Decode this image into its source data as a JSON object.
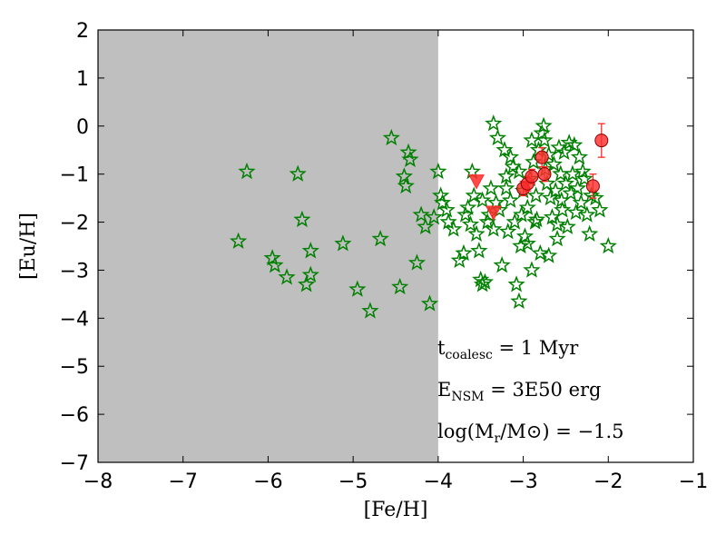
{
  "chart_data": {
    "type": "scatter",
    "xlabel": "[Fe/H]",
    "ylabel": "[Eu/H]",
    "xlim": [
      -8,
      -1
    ],
    "ylim": [
      -7,
      2
    ],
    "xticks": [
      -8,
      -7,
      -6,
      -5,
      -4,
      -3,
      -2,
      -1
    ],
    "xtick_labels": [
      "−8",
      "−7",
      "−6",
      "−5",
      "−4",
      "−3",
      "−2",
      "−1"
    ],
    "yticks": [
      2,
      1,
      0,
      -1,
      -2,
      -3,
      -4,
      -5,
      -6,
      -7
    ],
    "ytick_labels": [
      "2",
      "1",
      "0",
      "−1",
      "−2",
      "−3",
      "−4",
      "−5",
      "−6",
      "−7"
    ],
    "shaded_region": {
      "x": [
        -8,
        -4
      ],
      "color": "#bfbfbf"
    },
    "grid": false,
    "annotations": [
      {
        "main": "t",
        "sub": "coalesc",
        "rest": " = 1 Myr"
      },
      {
        "main": "E",
        "sub": "NSM",
        "rest": " = 3E50 erg"
      },
      {
        "main": "log(M",
        "sub": "r",
        "rest": "/M⊙) = −1.5"
      }
    ],
    "series": [
      {
        "marker": "star",
        "color": "#008000",
        "points": [
          [
            -6.35,
            -2.4
          ],
          [
            -6.25,
            -0.95
          ],
          [
            -5.95,
            -2.75
          ],
          [
            -5.92,
            -2.9
          ],
          [
            -5.78,
            -3.15
          ],
          [
            -5.65,
            -1.0
          ],
          [
            -5.6,
            -1.95
          ],
          [
            -5.55,
            -3.3
          ],
          [
            -5.5,
            -3.1
          ],
          [
            -5.5,
            -2.6
          ],
          [
            -5.12,
            -2.45
          ],
          [
            -4.95,
            -3.4
          ],
          [
            -4.8,
            -3.85
          ],
          [
            -4.68,
            -2.35
          ],
          [
            -4.55,
            -0.25
          ],
          [
            -4.45,
            -3.35
          ],
          [
            -4.4,
            -1.05
          ],
          [
            -4.35,
            -0.55
          ],
          [
            -4.33,
            -0.7
          ],
          [
            -4.38,
            -1.25
          ],
          [
            -4.25,
            -2.85
          ],
          [
            -4.2,
            -1.85
          ],
          [
            -4.15,
            -2.1
          ],
          [
            -4.1,
            -3.7
          ],
          [
            -4.05,
            -1.9
          ],
          [
            -4.0,
            -0.95
          ],
          [
            -3.97,
            -1.45
          ],
          [
            -3.95,
            -1.6
          ],
          [
            -3.9,
            -1.75
          ],
          [
            -3.88,
            -2.0
          ],
          [
            -3.82,
            -2.15
          ],
          [
            -3.75,
            -2.8
          ],
          [
            -3.7,
            -2.65
          ],
          [
            -3.68,
            -1.85
          ],
          [
            -3.65,
            -1.7
          ],
          [
            -3.62,
            -2.05
          ],
          [
            -3.6,
            -0.95
          ],
          [
            -3.58,
            -1.45
          ],
          [
            -3.55,
            -2.25
          ],
          [
            -3.52,
            -2.6
          ],
          [
            -3.5,
            -3.2
          ],
          [
            -3.48,
            -3.3
          ],
          [
            -3.45,
            -3.25
          ],
          [
            -3.42,
            -2.0
          ],
          [
            -3.4,
            -1.85
          ],
          [
            -3.38,
            -1.3
          ],
          [
            -3.35,
            -2.15
          ],
          [
            -3.32,
            -1.6
          ],
          [
            -3.3,
            -0.25
          ],
          [
            -3.28,
            -1.75
          ],
          [
            -3.25,
            -2.9
          ],
          [
            -3.22,
            -0.5
          ],
          [
            -3.2,
            -1.05
          ],
          [
            -3.18,
            -2.2
          ],
          [
            -3.15,
            -1.55
          ],
          [
            -3.12,
            -0.85
          ],
          [
            -3.1,
            -2.0
          ],
          [
            -3.08,
            -3.3
          ],
          [
            -3.05,
            -0.95
          ],
          [
            -3.03,
            -2.5
          ],
          [
            -3.0,
            -1.35
          ],
          [
            -2.98,
            -2.3
          ],
          [
            -2.95,
            -1.7
          ],
          [
            -2.92,
            -1.1
          ],
          [
            -2.9,
            -0.3
          ],
          [
            -2.88,
            -0.75
          ],
          [
            -2.86,
            -2.0
          ],
          [
            -2.84,
            -1.95
          ],
          [
            -2.82,
            -0.5
          ],
          [
            -2.8,
            -2.65
          ],
          [
            -2.78,
            -0.15
          ],
          [
            -2.76,
            0.0
          ],
          [
            -2.74,
            -0.9
          ],
          [
            -2.72,
            -1.2
          ],
          [
            -2.7,
            -0.6
          ],
          [
            -2.68,
            -1.5
          ],
          [
            -2.66,
            -1.9
          ],
          [
            -2.64,
            -0.8
          ],
          [
            -2.62,
            -1.35
          ],
          [
            -2.6,
            -2.35
          ],
          [
            -2.58,
            -0.45
          ],
          [
            -2.56,
            -1.0
          ],
          [
            -2.54,
            -1.75
          ],
          [
            -2.52,
            -0.55
          ],
          [
            -2.5,
            -1.2
          ],
          [
            -2.48,
            -2.1
          ],
          [
            -2.46,
            -0.35
          ],
          [
            -2.44,
            -1.4
          ],
          [
            -2.42,
            -1.0
          ],
          [
            -2.4,
            -0.4
          ],
          [
            -2.38,
            -1.8
          ],
          [
            -2.36,
            -1.3
          ],
          [
            -2.34,
            -0.65
          ],
          [
            -2.32,
            -1.6
          ],
          [
            -2.3,
            -0.95
          ],
          [
            -2.28,
            -1.1
          ],
          [
            -2.25,
            -1.85
          ],
          [
            -2.22,
            -2.25
          ],
          [
            -2.2,
            -1.45
          ],
          [
            -2.15,
            -1.5
          ],
          [
            -2.1,
            -1.75
          ],
          [
            -2.0,
            -2.5
          ],
          [
            -3.05,
            -3.65
          ],
          [
            -2.95,
            -2.45
          ],
          [
            -3.15,
            -0.65
          ],
          [
            -3.35,
            0.05
          ],
          [
            -2.9,
            -3.0
          ],
          [
            -2.6,
            -2.05
          ],
          [
            -3.48,
            -1.55
          ],
          [
            -3.02,
            -1.85
          ],
          [
            -2.85,
            -1.45
          ],
          [
            -2.7,
            -2.7
          ],
          [
            -3.2,
            -1.3
          ],
          [
            -2.75,
            -0.3
          ],
          [
            -2.55,
            -1.55
          ]
        ]
      },
      {
        "marker": "circle",
        "color": "#ff2a2a",
        "points": [
          [
            -3.0,
            -1.3
          ],
          [
            -2.95,
            -1.2
          ],
          [
            -2.9,
            -1.05
          ],
          [
            -2.78,
            -0.65
          ],
          [
            -2.75,
            -1.0
          ],
          [
            -2.18,
            -1.25
          ],
          [
            -2.08,
            -0.3
          ]
        ],
        "err": [
          0.15,
          0.15,
          0.15,
          0.2,
          0.15,
          0.25,
          0.35
        ]
      },
      {
        "marker": "triangle-down",
        "color": "#ff2a2a",
        "points": [
          [
            -3.55,
            -1.15
          ],
          [
            -3.35,
            -1.8
          ]
        ]
      }
    ]
  }
}
